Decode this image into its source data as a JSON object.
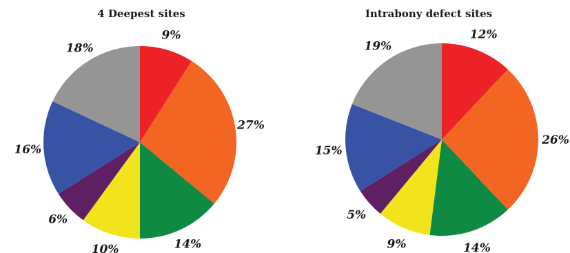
{
  "chart_data": [
    {
      "type": "pie",
      "title": "4 Deepest sites",
      "categories": [
        "red",
        "orange",
        "green",
        "yellow",
        "purple",
        "blue",
        "gray"
      ],
      "values": [
        9,
        27,
        14,
        10,
        6,
        16,
        18
      ],
      "labels": [
        "9%",
        "27%",
        "14%",
        "10%",
        "6%",
        "16%",
        "18%"
      ],
      "colors": [
        "#ec2227",
        "#f26522",
        "#0e8a43",
        "#f2e41c",
        "#5e1f63",
        "#3953a4",
        "#959595"
      ],
      "start_angle_deg": 0,
      "direction": "clockwise"
    },
    {
      "type": "pie",
      "title": "Intrabony defect sites",
      "categories": [
        "red",
        "orange",
        "green",
        "yellow",
        "purple",
        "blue",
        "gray"
      ],
      "values": [
        12,
        26,
        14,
        9,
        5,
        15,
        19
      ],
      "labels": [
        "12%",
        "26%",
        "14%",
        "9%",
        "5%",
        "15%",
        "19%"
      ],
      "colors": [
        "#ec2227",
        "#f26522",
        "#0e8a43",
        "#f2e41c",
        "#5e1f63",
        "#3953a4",
        "#959595"
      ],
      "start_angle_deg": 0,
      "direction": "clockwise"
    }
  ]
}
